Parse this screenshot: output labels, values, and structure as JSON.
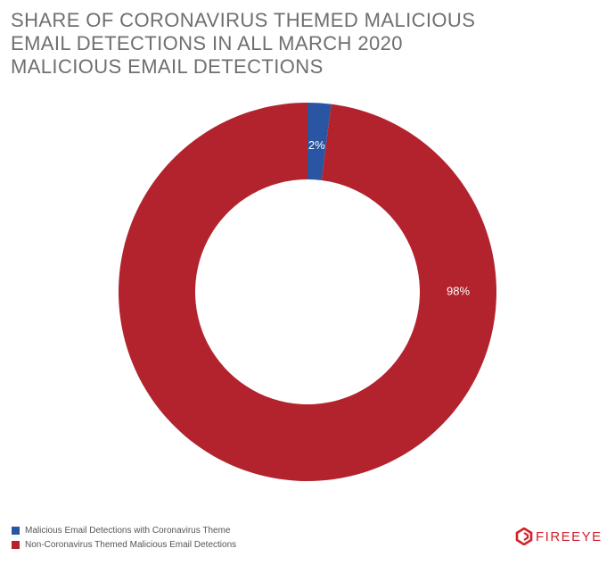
{
  "chart_data": {
    "type": "pie",
    "title": "SHARE OF CORONAVIRUS THEMED MALICIOUS EMAIL DETECTIONS IN ALL MARCH 2020 MALICIOUS EMAIL DETECTIONS",
    "donut": true,
    "categories": [
      "Malicious Email Detections with Coronavirus Theme",
      "Non-Coronavirus Themed Malicious Email Detections"
    ],
    "values": [
      2,
      98
    ],
    "data_labels": [
      "2%",
      "98%"
    ],
    "colors": [
      "#2a55a3",
      "#b2232d"
    ],
    "legend_position": "bottom-left"
  },
  "branding": {
    "logo_text": "FIREEYE",
    "logo_icon": "fireeye-logo-icon",
    "logo_color": "#d3202a"
  }
}
